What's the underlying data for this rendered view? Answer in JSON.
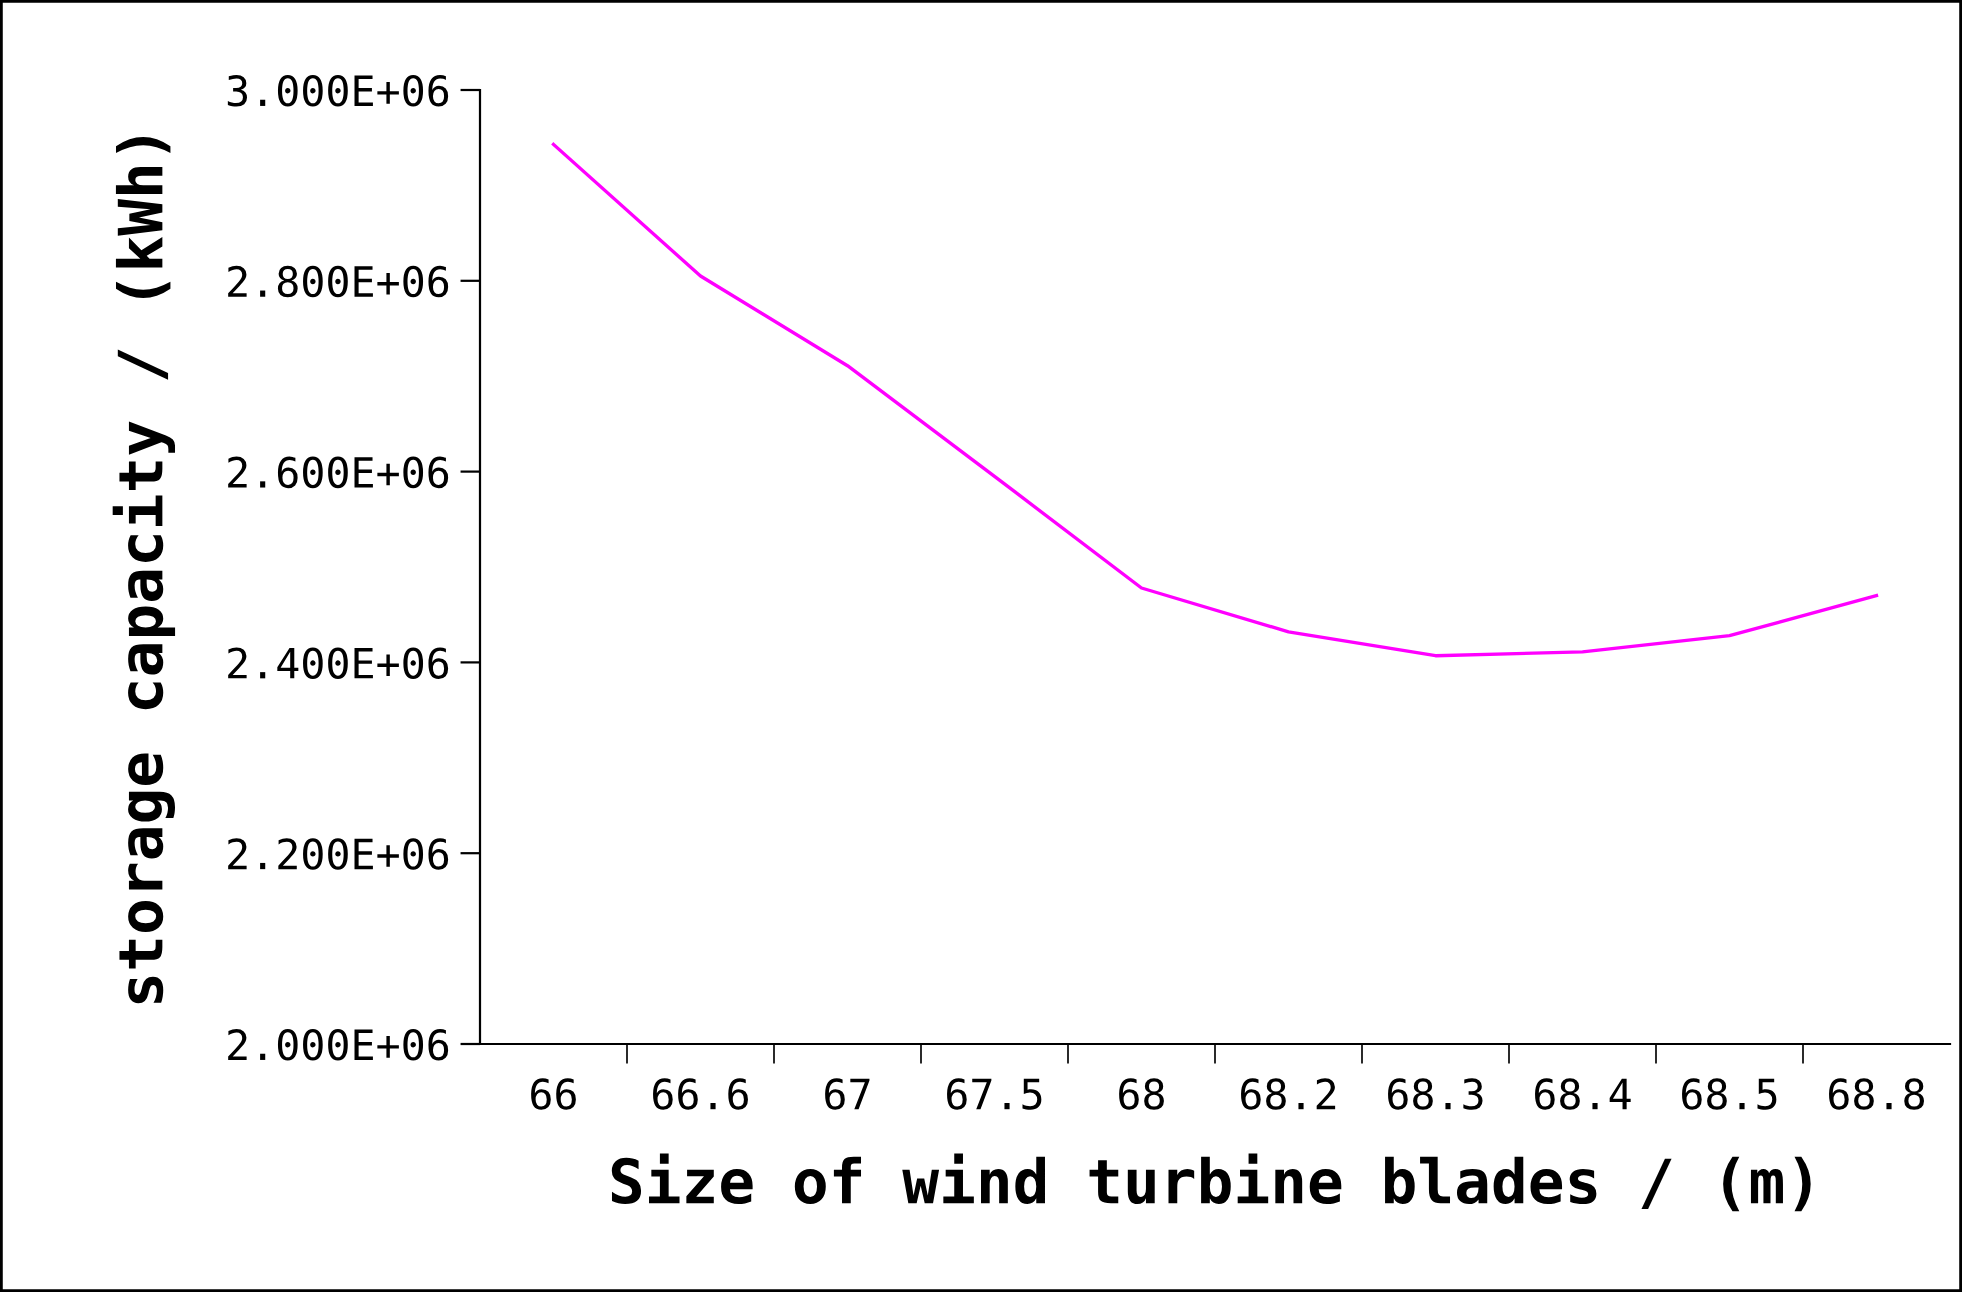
{
  "chart_data": {
    "type": "line",
    "xlabel": "Size of wind turbine blades / (m)",
    "ylabel": "storage capacity / (kWh)",
    "categories": [
      "66",
      "66.6",
      "67",
      "67.5",
      "68",
      "68.2",
      "68.3",
      "68.4",
      "68.5",
      "68.8"
    ],
    "series": [
      {
        "color": "#ff00ff",
        "values": [
          2943000,
          2805000,
          2711000,
          2595000,
          2478000,
          2432000,
          2407000,
          2411000,
          2428000,
          2470000
        ]
      }
    ],
    "ylim": [
      2000000,
      3000000
    ],
    "yticks": [
      {
        "value": 2000000,
        "label": "2.000E+06"
      },
      {
        "value": 2200000,
        "label": "2.200E+06"
      },
      {
        "value": 2400000,
        "label": "2.400E+06"
      },
      {
        "value": 2600000,
        "label": "2.600E+06"
      },
      {
        "value": 2800000,
        "label": "2.800E+06"
      },
      {
        "value": 3000000,
        "label": "3.000E+06"
      }
    ],
    "grid": false,
    "legend": false,
    "marker": "none",
    "line_style": "solid"
  }
}
